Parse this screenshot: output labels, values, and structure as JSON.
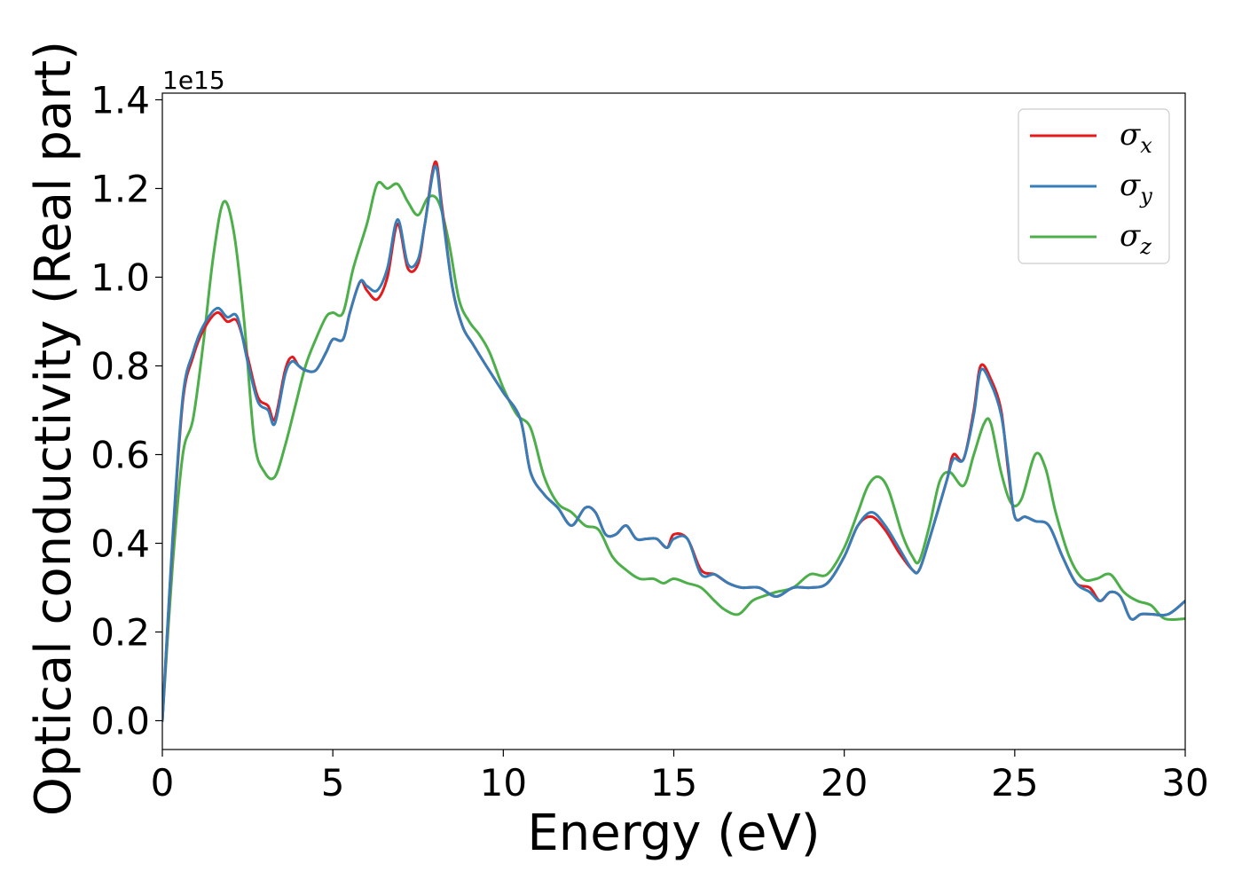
{
  "chart_data": {
    "type": "line",
    "xlabel": "Energy (eV)",
    "ylabel": "Optical conductivity (Real part)",
    "y_offset_label": "1e15",
    "xlim": [
      0,
      30
    ],
    "ylim": [
      -0.065,
      1.415
    ],
    "x_ticks": [
      0,
      5,
      10,
      15,
      20,
      25,
      30
    ],
    "x_tick_labels": [
      "0",
      "5",
      "10",
      "15",
      "20",
      "25",
      "30"
    ],
    "y_ticks": [
      0.0,
      0.2,
      0.4,
      0.6,
      0.8,
      1.0,
      1.2,
      1.4
    ],
    "y_tick_labels": [
      "0.0",
      "0.2",
      "0.4",
      "0.6",
      "0.8",
      "1.0",
      "1.2",
      "1.4"
    ],
    "grid": false,
    "legend_position": "top-right",
    "series": [
      {
        "name": "σ",
        "subscript": "x",
        "color": "#e41a1c",
        "x": [
          0,
          0.3,
          0.6,
          0.9,
          1.2,
          1.6,
          1.9,
          2.2,
          2.5,
          2.8,
          3.1,
          3.3,
          3.6,
          3.8,
          4.0,
          4.2,
          4.5,
          4.8,
          5.0,
          5.3,
          5.5,
          5.8,
          6.0,
          6.3,
          6.6,
          6.9,
          7.2,
          7.5,
          7.7,
          8.0,
          8.2,
          8.5,
          8.8,
          9.1,
          9.5,
          10.0,
          10.5,
          10.8,
          11.2,
          11.6,
          12.0,
          12.4,
          12.7,
          13.0,
          13.3,
          13.6,
          13.9,
          14.2,
          14.5,
          14.8,
          15.0,
          15.4,
          15.8,
          16.2,
          16.6,
          17.0,
          17.5,
          18.0,
          18.5,
          19.0,
          19.5,
          20.0,
          20.4,
          20.8,
          21.2,
          21.6,
          22.0,
          22.2,
          22.5,
          23.0,
          23.2,
          23.5,
          23.8,
          24.0,
          24.3,
          24.6,
          24.8,
          25.0,
          25.3,
          25.6,
          26.0,
          26.4,
          26.8,
          27.2,
          27.5,
          27.8,
          28.1,
          28.4,
          28.7,
          29.0,
          29.5,
          30.0
        ],
        "values": [
          0.0,
          0.4,
          0.72,
          0.82,
          0.88,
          0.92,
          0.9,
          0.9,
          0.82,
          0.73,
          0.71,
          0.68,
          0.79,
          0.82,
          0.8,
          0.79,
          0.79,
          0.83,
          0.86,
          0.86,
          0.92,
          0.99,
          0.97,
          0.95,
          1.0,
          1.12,
          1.02,
          1.03,
          1.12,
          1.26,
          1.16,
          0.98,
          0.89,
          0.85,
          0.8,
          0.74,
          0.68,
          0.56,
          0.51,
          0.48,
          0.44,
          0.48,
          0.47,
          0.42,
          0.42,
          0.44,
          0.41,
          0.41,
          0.41,
          0.39,
          0.42,
          0.41,
          0.34,
          0.33,
          0.31,
          0.3,
          0.3,
          0.28,
          0.3,
          0.3,
          0.31,
          0.37,
          0.44,
          0.46,
          0.43,
          0.38,
          0.34,
          0.34,
          0.41,
          0.54,
          0.6,
          0.59,
          0.7,
          0.8,
          0.77,
          0.7,
          0.57,
          0.46,
          0.46,
          0.45,
          0.44,
          0.37,
          0.31,
          0.3,
          0.27,
          0.29,
          0.28,
          0.23,
          0.24,
          0.24,
          0.24,
          0.27
        ]
      },
      {
        "name": "σ",
        "subscript": "y",
        "color": "#377eb8",
        "x": [
          0,
          0.3,
          0.6,
          0.9,
          1.2,
          1.6,
          1.9,
          2.2,
          2.5,
          2.8,
          3.1,
          3.3,
          3.6,
          3.8,
          4.0,
          4.2,
          4.5,
          4.8,
          5.0,
          5.3,
          5.5,
          5.8,
          6.0,
          6.3,
          6.6,
          6.9,
          7.2,
          7.5,
          7.7,
          8.0,
          8.2,
          8.5,
          8.8,
          9.1,
          9.5,
          10.0,
          10.5,
          10.8,
          11.2,
          11.6,
          12.0,
          12.4,
          12.7,
          13.0,
          13.3,
          13.6,
          13.9,
          14.2,
          14.5,
          14.8,
          15.0,
          15.4,
          15.8,
          16.2,
          16.6,
          17.0,
          17.5,
          18.0,
          18.5,
          19.0,
          19.5,
          20.0,
          20.4,
          20.8,
          21.2,
          21.6,
          22.0,
          22.2,
          22.5,
          23.0,
          23.2,
          23.5,
          23.8,
          24.0,
          24.3,
          24.6,
          24.8,
          25.0,
          25.3,
          25.6,
          26.0,
          26.4,
          26.8,
          27.2,
          27.5,
          27.8,
          28.1,
          28.4,
          28.7,
          29.0,
          29.5,
          30.0
        ],
        "values": [
          0.0,
          0.41,
          0.73,
          0.83,
          0.89,
          0.93,
          0.91,
          0.91,
          0.81,
          0.72,
          0.7,
          0.67,
          0.78,
          0.81,
          0.8,
          0.79,
          0.79,
          0.83,
          0.86,
          0.86,
          0.92,
          0.99,
          0.98,
          0.97,
          1.02,
          1.13,
          1.03,
          1.04,
          1.12,
          1.25,
          1.15,
          0.98,
          0.89,
          0.85,
          0.8,
          0.74,
          0.68,
          0.56,
          0.51,
          0.48,
          0.44,
          0.48,
          0.47,
          0.42,
          0.42,
          0.44,
          0.41,
          0.41,
          0.41,
          0.39,
          0.41,
          0.41,
          0.33,
          0.33,
          0.31,
          0.3,
          0.3,
          0.28,
          0.3,
          0.3,
          0.31,
          0.37,
          0.44,
          0.47,
          0.44,
          0.39,
          0.34,
          0.34,
          0.41,
          0.54,
          0.59,
          0.59,
          0.69,
          0.79,
          0.76,
          0.69,
          0.58,
          0.46,
          0.46,
          0.45,
          0.44,
          0.37,
          0.31,
          0.29,
          0.27,
          0.29,
          0.28,
          0.23,
          0.24,
          0.24,
          0.24,
          0.27
        ]
      },
      {
        "name": "σ",
        "subscript": "z",
        "color": "#4daf4a",
        "x": [
          0,
          0.3,
          0.6,
          0.9,
          1.2,
          1.5,
          1.8,
          2.1,
          2.4,
          2.7,
          3.0,
          3.3,
          3.6,
          3.9,
          4.2,
          4.5,
          4.8,
          5.0,
          5.3,
          5.6,
          6.0,
          6.3,
          6.6,
          6.9,
          7.2,
          7.5,
          7.8,
          8.1,
          8.4,
          8.7,
          9.0,
          9.3,
          9.6,
          10.0,
          10.4,
          10.8,
          11.2,
          11.6,
          12.0,
          12.4,
          12.8,
          13.2,
          13.6,
          14.0,
          14.4,
          14.7,
          15.0,
          15.4,
          15.8,
          16.2,
          16.5,
          16.9,
          17.3,
          17.6,
          18.0,
          18.5,
          19.0,
          19.5,
          20.0,
          20.4,
          20.7,
          21.0,
          21.3,
          21.7,
          22.0,
          22.2,
          22.5,
          22.8,
          23.1,
          23.5,
          23.8,
          24.1,
          24.3,
          24.6,
          24.9,
          25.2,
          25.6,
          25.9,
          26.2,
          26.6,
          27.0,
          27.4,
          27.8,
          28.2,
          28.6,
          29.0,
          29.4,
          30.0
        ],
        "values": [
          0.0,
          0.35,
          0.6,
          0.68,
          0.85,
          1.05,
          1.17,
          1.1,
          0.9,
          0.63,
          0.56,
          0.55,
          0.62,
          0.71,
          0.8,
          0.86,
          0.91,
          0.92,
          0.92,
          1.02,
          1.12,
          1.21,
          1.2,
          1.21,
          1.17,
          1.14,
          1.18,
          1.17,
          1.08,
          0.95,
          0.9,
          0.87,
          0.83,
          0.75,
          0.69,
          0.66,
          0.55,
          0.49,
          0.47,
          0.44,
          0.43,
          0.37,
          0.34,
          0.32,
          0.32,
          0.31,
          0.32,
          0.31,
          0.3,
          0.27,
          0.25,
          0.24,
          0.27,
          0.28,
          0.29,
          0.3,
          0.33,
          0.33,
          0.39,
          0.47,
          0.53,
          0.55,
          0.52,
          0.42,
          0.37,
          0.36,
          0.44,
          0.54,
          0.56,
          0.53,
          0.6,
          0.67,
          0.67,
          0.56,
          0.49,
          0.5,
          0.6,
          0.57,
          0.47,
          0.37,
          0.32,
          0.32,
          0.33,
          0.29,
          0.27,
          0.26,
          0.23,
          0.23
        ]
      }
    ]
  }
}
